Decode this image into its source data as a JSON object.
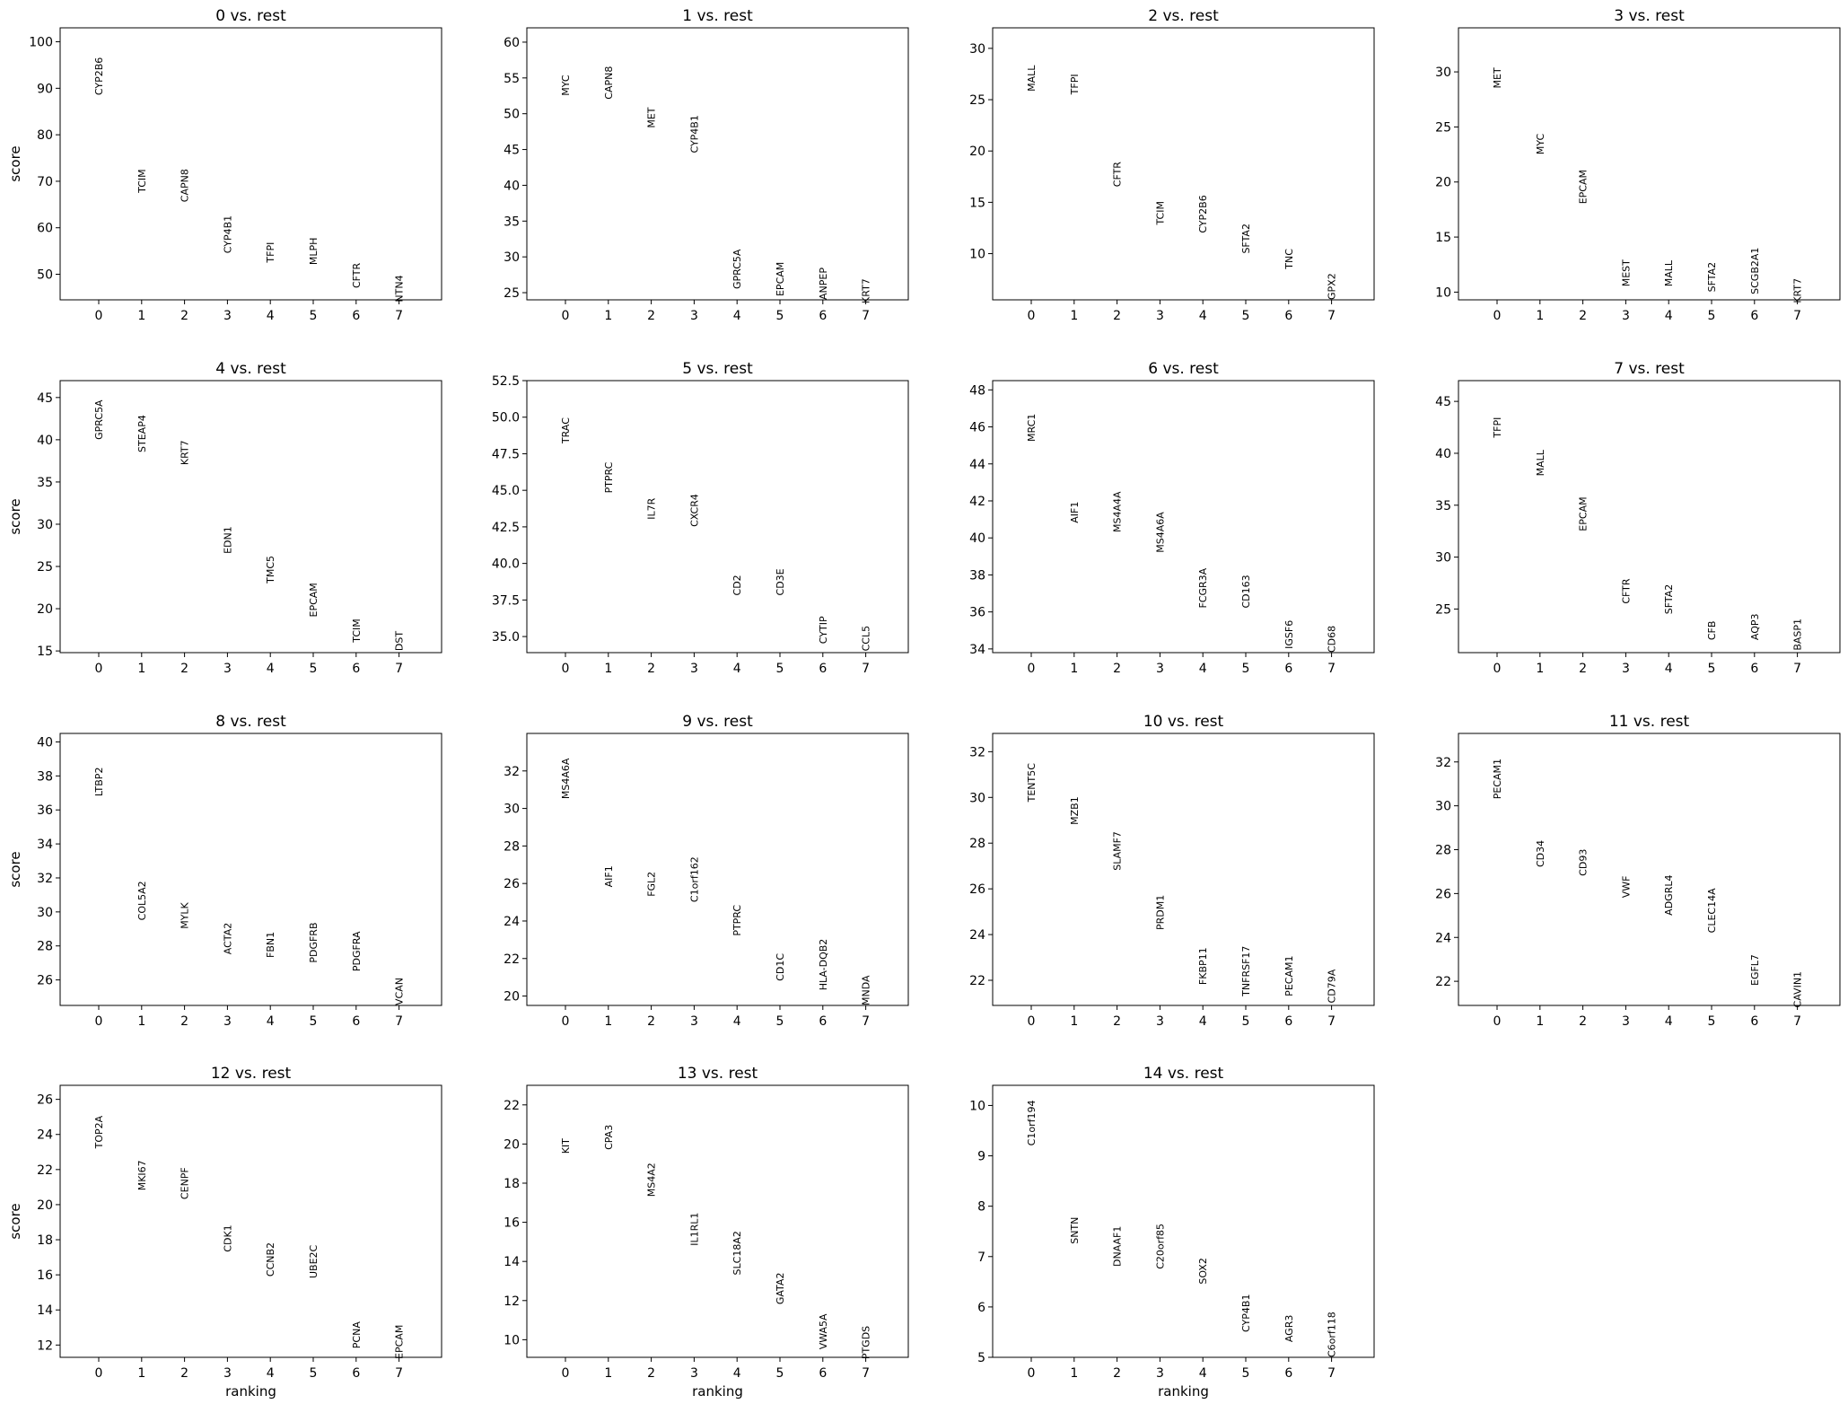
{
  "figure": {
    "ylabel": "score",
    "xlabel": "ranking"
  },
  "chart_data": [
    {
      "type": "scatter",
      "title": "0 vs. rest",
      "genes": [
        "CYP2B6",
        "TCIM",
        "CAPN8",
        "CYP4B1",
        "TFPI",
        "MLPH",
        "CFTR",
        "NTN4"
      ],
      "x": [
        0,
        1,
        2,
        3,
        4,
        5,
        6,
        7
      ],
      "values": [
        88.5,
        67.5,
        65.5,
        54.5,
        52.5,
        52,
        47,
        44
      ],
      "ylim": [
        44.5,
        103
      ],
      "yticks": [
        50,
        60,
        70,
        80,
        90,
        100
      ],
      "xlabel": "",
      "ylabel": "score"
    },
    {
      "type": "scatter",
      "title": "1 vs. rest",
      "genes": [
        "MYC",
        "CAPN8",
        "MET",
        "CYP4B1",
        "GPRC5A",
        "EPCAM",
        "ANPEP",
        "KRT7"
      ],
      "x": [
        0,
        1,
        2,
        3,
        4,
        5,
        6,
        7
      ],
      "values": [
        52.5,
        52,
        48,
        44.5,
        25.5,
        24.5,
        24,
        23.5
      ],
      "ylim": [
        24,
        62
      ],
      "yticks": [
        25,
        30,
        35,
        40,
        45,
        50,
        55,
        60
      ],
      "xlabel": "",
      "ylabel": ""
    },
    {
      "type": "scatter",
      "title": "2 vs. rest",
      "genes": [
        "MALL",
        "TFPI",
        "CFTR",
        "TCIM",
        "CYP2B6",
        "SFTA2",
        "TNC",
        "GPX2"
      ],
      "x": [
        0,
        1,
        2,
        3,
        4,
        5,
        6,
        7
      ],
      "values": [
        25.8,
        25.5,
        16.5,
        12.8,
        12,
        10,
        8.5,
        5.5
      ],
      "ylim": [
        5.5,
        32
      ],
      "yticks": [
        10,
        15,
        20,
        25,
        30
      ],
      "xlabel": "",
      "ylabel": ""
    },
    {
      "type": "scatter",
      "title": "3 vs. rest",
      "genes": [
        "MET",
        "MYC",
        "EPCAM",
        "MEST",
        "MALL",
        "SFTA2",
        "SCGB2A1",
        "KRT7"
      ],
      "x": [
        0,
        1,
        2,
        3,
        4,
        5,
        6,
        7
      ],
      "values": [
        28.5,
        22.5,
        18,
        10.5,
        10.5,
        10,
        9.8,
        9
      ],
      "ylim": [
        9.3,
        34
      ],
      "yticks": [
        10,
        15,
        20,
        25,
        30
      ],
      "xlabel": "",
      "ylabel": ""
    },
    {
      "type": "scatter",
      "title": "4 vs. rest",
      "genes": [
        "GPRC5A",
        "STEAP4",
        "KRT7",
        "EDN1",
        "TMC5",
        "EPCAM",
        "TCIM",
        "DST"
      ],
      "x": [
        0,
        1,
        2,
        3,
        4,
        5,
        6,
        7
      ],
      "values": [
        40,
        38.5,
        37,
        26.5,
        23,
        19,
        16,
        15
      ],
      "ylim": [
        14.8,
        47
      ],
      "yticks": [
        15,
        20,
        25,
        30,
        35,
        40,
        45
      ],
      "xlabel": "",
      "ylabel": "score"
    },
    {
      "type": "scatter",
      "title": "5 vs. rest",
      "genes": [
        "TRAC",
        "PTPRC",
        "IL7R",
        "CXCR4",
        "CD2",
        "CD3E",
        "CYTIP",
        "CCL5"
      ],
      "x": [
        0,
        1,
        2,
        3,
        4,
        5,
        6,
        7
      ],
      "values": [
        48.2,
        44.8,
        43,
        42.5,
        37.8,
        37.8,
        34.5,
        34
      ],
      "ylim": [
        33.9,
        52.5
      ],
      "yticks": [
        35,
        37.5,
        40,
        42.5,
        45,
        47.5,
        50,
        52.5
      ],
      "xlabel": "",
      "ylabel": ""
    },
    {
      "type": "scatter",
      "title": "6 vs. rest",
      "genes": [
        "MRC1",
        "AIF1",
        "MS4A4A",
        "MS4A6A",
        "FCGR3A",
        "CD163",
        "IGSF6",
        "CD68"
      ],
      "x": [
        0,
        1,
        2,
        3,
        4,
        5,
        6,
        7
      ],
      "values": [
        45.2,
        40.8,
        40.3,
        39.2,
        36.2,
        36.2,
        34,
        33.8
      ],
      "ylim": [
        33.8,
        48.5
      ],
      "yticks": [
        34,
        36,
        38,
        40,
        42,
        44,
        46,
        48
      ],
      "xlabel": "",
      "ylabel": ""
    },
    {
      "type": "scatter",
      "title": "7 vs. rest",
      "genes": [
        "TFPI",
        "MALL",
        "EPCAM",
        "CFTR",
        "SFTA2",
        "CFB",
        "AQP3",
        "BASP1"
      ],
      "x": [
        0,
        1,
        2,
        3,
        4,
        5,
        6,
        7
      ],
      "values": [
        41.5,
        37.8,
        32.5,
        25.5,
        24.5,
        22,
        22,
        21
      ],
      "ylim": [
        20.8,
        47
      ],
      "yticks": [
        25,
        30,
        35,
        40,
        45
      ],
      "xlabel": "",
      "ylabel": ""
    },
    {
      "type": "scatter",
      "title": "8 vs. rest",
      "genes": [
        "LTBP2",
        "COL5A2",
        "MYLK",
        "ACTA2",
        "FBN1",
        "PDGFRB",
        "PDGFRA",
        "VCAN"
      ],
      "x": [
        0,
        1,
        2,
        3,
        4,
        5,
        6,
        7
      ],
      "values": [
        36.8,
        29.5,
        29,
        27.5,
        27.3,
        27,
        26.5,
        24.5
      ],
      "ylim": [
        24.5,
        40.5
      ],
      "yticks": [
        26,
        28,
        30,
        32,
        34,
        36,
        38,
        40
      ],
      "xlabel": "",
      "ylabel": "score"
    },
    {
      "type": "scatter",
      "title": "9 vs. rest",
      "genes": [
        "MS4A6A",
        "AIF1",
        "FGL2",
        "C1orf162",
        "PTPRC",
        "CD1C",
        "HLA-DQB2",
        "MNDA"
      ],
      "x": [
        0,
        1,
        2,
        3,
        4,
        5,
        6,
        7
      ],
      "values": [
        30.5,
        25.8,
        25.3,
        25,
        23.2,
        20.8,
        20.3,
        19.5
      ],
      "ylim": [
        19.5,
        34
      ],
      "yticks": [
        20,
        22,
        24,
        26,
        28,
        30,
        32
      ],
      "xlabel": "",
      "ylabel": ""
    },
    {
      "type": "scatter",
      "title": "10 vs. rest",
      "genes": [
        "TENT5C",
        "MZB1",
        "SLAMF7",
        "PRDM1",
        "FKBP11",
        "TNFRSF17",
        "PECAM1",
        "CD79A"
      ],
      "x": [
        0,
        1,
        2,
        3,
        4,
        5,
        6,
        7
      ],
      "values": [
        29.8,
        28.8,
        26.8,
        24.2,
        21.8,
        21.3,
        21.3,
        21
      ],
      "ylim": [
        20.9,
        32.8
      ],
      "yticks": [
        22,
        24,
        26,
        28,
        30,
        32
      ],
      "xlabel": "",
      "ylabel": ""
    },
    {
      "type": "scatter",
      "title": "11 vs. rest",
      "genes": [
        "PECAM1",
        "CD34",
        "CD93",
        "VWF",
        "ADGRL4",
        "CLEC14A",
        "EGFL7",
        "CAVIN1"
      ],
      "x": [
        0,
        1,
        2,
        3,
        4,
        5,
        6,
        7
      ],
      "values": [
        30.3,
        27.2,
        26.8,
        25.8,
        25,
        24.2,
        21.8,
        20.8
      ],
      "ylim": [
        20.9,
        33.3
      ],
      "yticks": [
        22,
        24,
        26,
        28,
        30,
        32
      ],
      "xlabel": "",
      "ylabel": ""
    },
    {
      "type": "scatter",
      "title": "12 vs. rest",
      "genes": [
        "TOP2A",
        "MKI67",
        "CENPF",
        "CDK1",
        "CCNB2",
        "UBE2C",
        "PCNA",
        "EPCAM"
      ],
      "x": [
        0,
        1,
        2,
        3,
        4,
        5,
        6,
        7
      ],
      "values": [
        23.2,
        20.8,
        20.3,
        17.3,
        15.9,
        15.8,
        11.8,
        11.2
      ],
      "ylim": [
        11.3,
        26.8
      ],
      "yticks": [
        12,
        14,
        16,
        18,
        20,
        22,
        24,
        26
      ],
      "xlabel": "ranking",
      "ylabel": "score"
    },
    {
      "type": "scatter",
      "title": "13 vs. rest",
      "genes": [
        "KIT",
        "CPA3",
        "MS4A2",
        "IL1RL1",
        "SLC18A2",
        "GATA2",
        "VWA5A",
        "PTGDS"
      ],
      "x": [
        0,
        1,
        2,
        3,
        4,
        5,
        6,
        7
      ],
      "values": [
        19.5,
        19.7,
        17.3,
        14.8,
        13.3,
        11.8,
        9.5,
        9
      ],
      "ylim": [
        9.1,
        23
      ],
      "yticks": [
        10,
        12,
        14,
        16,
        18,
        20,
        22
      ],
      "xlabel": "ranking",
      "ylabel": ""
    },
    {
      "type": "scatter",
      "title": "14 vs. rest",
      "genes": [
        "C1orf194",
        "SNTN",
        "DNAAF1",
        "C20orf85",
        "SOX2",
        "CYP4B1",
        "AGR3",
        "C6orf118"
      ],
      "x": [
        0,
        1,
        2,
        3,
        4,
        5,
        6,
        7
      ],
      "values": [
        9.2,
        7.25,
        6.8,
        6.75,
        6.45,
        5.5,
        5.3,
        5
      ],
      "ylim": [
        5,
        10.4
      ],
      "yticks": [
        5,
        6,
        7,
        8,
        9,
        10
      ],
      "xlabel": "ranking",
      "ylabel": ""
    }
  ]
}
